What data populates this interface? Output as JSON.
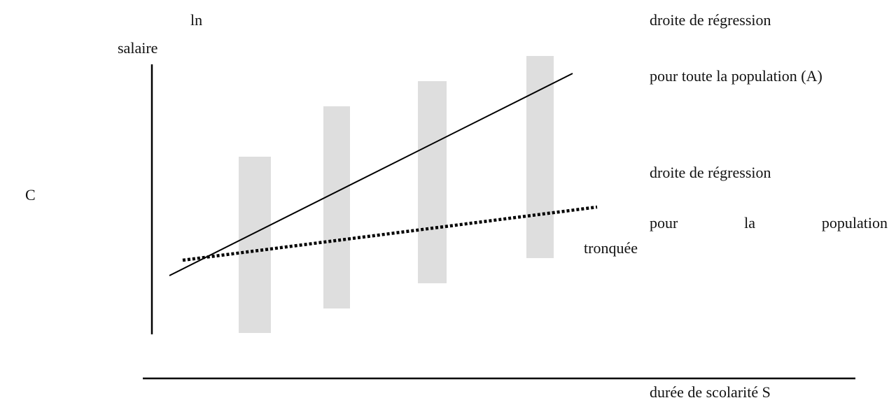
{
  "labels": {
    "y_axis_line1": "ln",
    "y_axis_line2": "salaire",
    "side_letter": "C",
    "x_axis": "durée de scolarité S",
    "line_a": {
      "line1": "droite de régression",
      "line2": "pour toute la population (A)"
    },
    "line_b": {
      "line1": "droite de régression",
      "line2_words": [
        "pour",
        "la",
        "population"
      ],
      "line3": "tronquée"
    }
  },
  "colors": {
    "axis": "#000000",
    "range_bars": "#dedede",
    "regression_full": "#000000",
    "regression_truncated": "#000000"
  },
  "elements": {
    "range_bar_count": 4,
    "regression_full_style": "solid",
    "regression_truncated_style": "dotted"
  }
}
